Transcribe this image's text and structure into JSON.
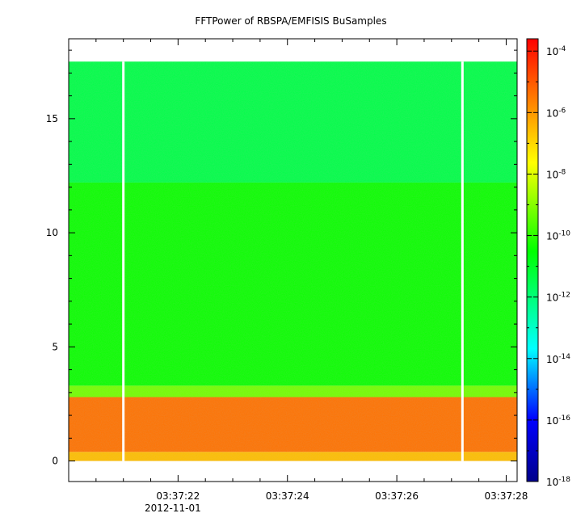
{
  "chart_data": {
    "type": "heatmap",
    "title": "FFTPower of RBSPA/EMFISIS  BuSamples",
    "xlabel": "",
    "ylabel": "",
    "date_label": "2012-11-01",
    "x_ticks": [
      "03:37:22",
      "03:37:24",
      "03:37:26",
      "03:37:28"
    ],
    "x_tick_seconds": [
      22,
      24,
      26,
      28
    ],
    "xlim_seconds": [
      20.0,
      28.2
    ],
    "y_ticks": [
      0,
      5,
      10,
      15
    ],
    "ylim": [
      -0.9,
      18.5
    ],
    "data_y_extent": [
      0,
      17.5
    ],
    "data_gaps_seconds": [
      21.0,
      27.2
    ],
    "bands": [
      {
        "y_from": 0.0,
        "y_to": 0.4,
        "level_exp": -6.6
      },
      {
        "y_from": 0.4,
        "y_to": 2.8,
        "level_exp": -5.4
      },
      {
        "y_from": 2.8,
        "y_to": 3.3,
        "level_exp": -9.2
      },
      {
        "y_from": 3.3,
        "y_to": 12.2,
        "level_exp": -10.4
      },
      {
        "y_from": 12.2,
        "y_to": 17.5,
        "level_exp": -11.4
      }
    ],
    "colorbar": {
      "scale": "log",
      "range_exp": [
        -18,
        -3.6
      ],
      "tick_base": "10",
      "tick_exponents": [
        "-4",
        "-6",
        "-8",
        "-10",
        "-12",
        "-14",
        "-16",
        "-18"
      ],
      "colors": [
        "#00008b",
        "#0000ff",
        "#00ffff",
        "#00ff00",
        "#ffff00",
        "#ff8000",
        "#ff0000"
      ]
    }
  }
}
